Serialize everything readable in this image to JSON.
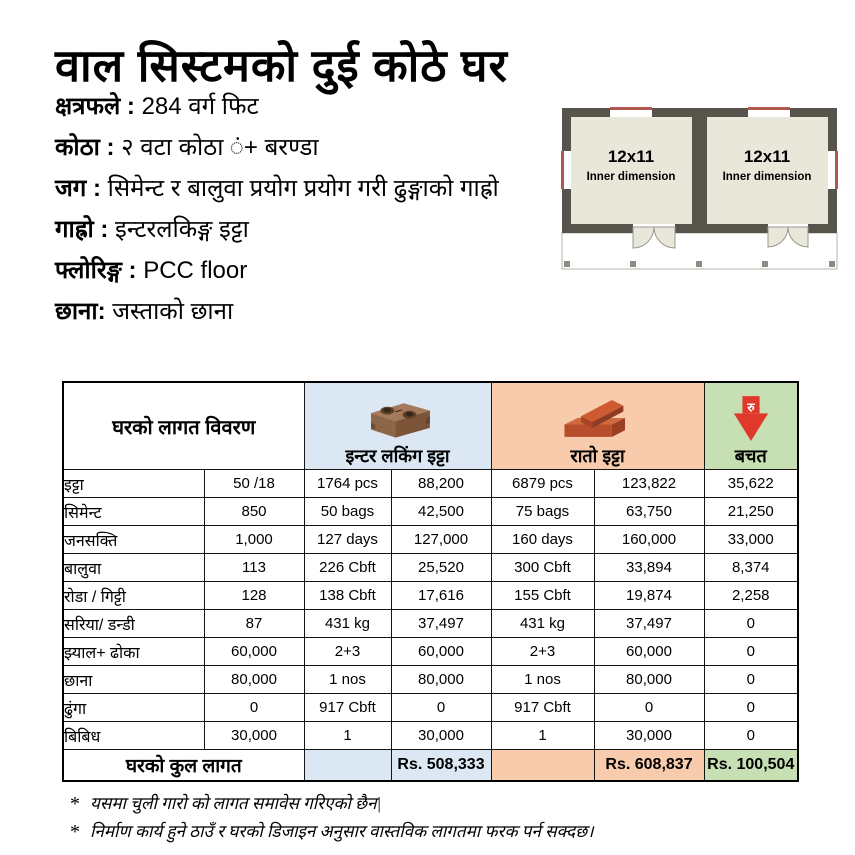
{
  "title": "वाल सिस्टमको दुई कोठे घर",
  "specs": [
    {
      "label": "क्षत्रफले",
      "sep": " : ",
      "value": "284 वर्ग फिट"
    },
    {
      "label": "कोठा",
      "sep": " : ",
      "value": "२ वटा कोठा ं+ बरण्डा"
    },
    {
      "label": "जग",
      "sep": " : ",
      "value": "सिमेन्ट र बालुवा प्रयोग प्रयोग गरी ढुङ्गाको गाह्रो"
    },
    {
      "label": "गाह्रो",
      "sep": " : ",
      "value": "इन्टरलकिङ्ग इट्टा"
    },
    {
      "label": "फ्लोरिङ्ग",
      "sep": " : ",
      "value": "PCC floor"
    },
    {
      "label": "छाना:",
      "sep": " ",
      "value": "जस्ताको छाना"
    }
  ],
  "floor_plan": {
    "rooms": [
      {
        "size": "12x11",
        "label": "Inner dimension"
      },
      {
        "size": "12x11",
        "label": "Inner dimension"
      }
    ]
  },
  "table": {
    "headers": {
      "detail": "घरको लागत विवरण",
      "interlocking": "इन्टर लकिंग इट्टा",
      "red_brick": "रातो इट्टा",
      "saving": "बचत",
      "arrow_symbol": "रु"
    },
    "rows": [
      [
        "इट्टा",
        "50 /18",
        "1764 pcs",
        "88,200",
        "6879 pcs",
        "123,822",
        "35,622"
      ],
      [
        "सिमेन्ट",
        "850",
        "50 bags",
        "42,500",
        "75 bags",
        "63,750",
        "21,250"
      ],
      [
        "जनसक्ति",
        "1,000",
        "127 days",
        "127,000",
        "160 days",
        "160,000",
        "33,000"
      ],
      [
        "बालुवा",
        "113",
        "226 Cbft",
        "25,520",
        "300 Cbft",
        "33,894",
        "8,374"
      ],
      [
        "रोडा / गिट्टी",
        "128",
        "138 Cbft",
        "17,616",
        "155 Cbft",
        "19,874",
        "2,258"
      ],
      [
        "सरिया/ डन्डी",
        "87",
        "431 kg",
        "37,497",
        "431 kg",
        "37,497",
        "0"
      ],
      [
        "झ्याल+ ढोका",
        "60,000",
        "2+3",
        "60,000",
        "2+3",
        "60,000",
        "0"
      ],
      [
        "छाना",
        "80,000",
        "1 nos",
        "80,000",
        "1 nos",
        "80,000",
        "0"
      ],
      [
        "ढुंगा",
        "0",
        "917 Cbft",
        "0",
        "917 Cbft",
        "0",
        "0"
      ],
      [
        "बिबिध",
        "30,000",
        "1",
        "30,000",
        "1",
        "30,000",
        "0"
      ]
    ],
    "total": {
      "label": "घरको कुल लागत",
      "interlocking_cost": "Rs. 508,333",
      "red_brick_cost": "Rs. 608,837",
      "saving": "Rs. 100,504"
    }
  },
  "footnote_marker": "*",
  "footnotes": [
    "यसमा चुली गारो को लागत समावेस गरिएको छैन|",
    "निर्माण कार्य हुने ठाउँ र घरको डिजाइन अनुसार वास्तविक लागतमा फरक पर्न सक्दछ।"
  ],
  "colors": {
    "interlocking_header": "#dbe8f4",
    "red_brick_header": "#f8cbad",
    "saving_header": "#c6e0b4",
    "arrow_red": "#e0392b",
    "wall_gray": "#57544c",
    "room_fill": "#e9e7da",
    "window_accent": "#b2574d"
  }
}
